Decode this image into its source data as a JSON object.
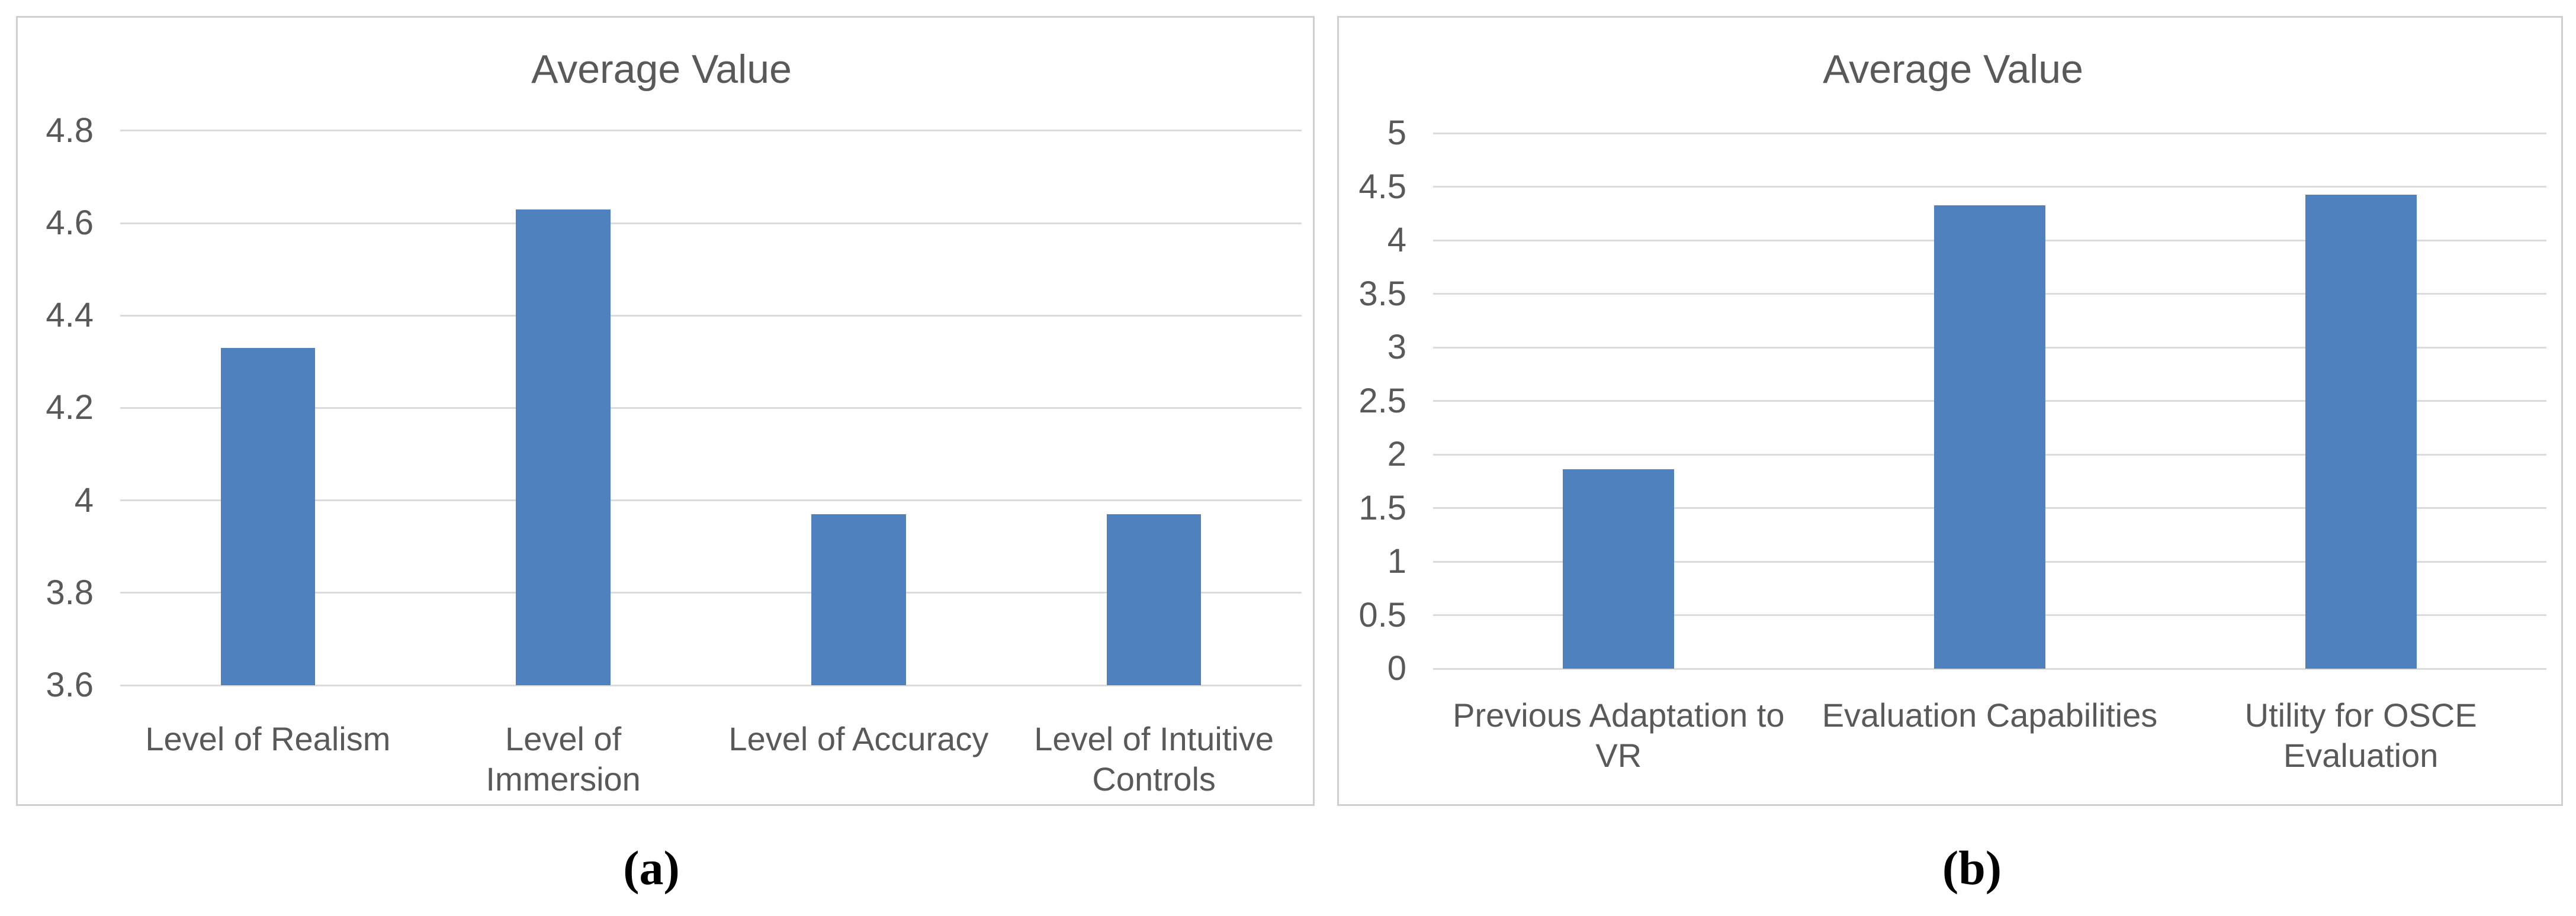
{
  "chart_data": [
    {
      "type": "bar",
      "panel": "a",
      "title": "Average Value",
      "caption": "(a)",
      "categories": [
        "Level of Realism",
        "Level of Immersion",
        "Level of Accuracy",
        "Level of Intuitive Controls"
      ],
      "category_lines": [
        [
          "Level of Realism"
        ],
        [
          "Level of",
          "Immersion"
        ],
        [
          "Level of Accuracy"
        ],
        [
          "Level of Intuitive",
          "Controls"
        ]
      ],
      "values": [
        4.33,
        4.63,
        3.97,
        3.97
      ],
      "ytick_labels": [
        "4.8",
        "4.6",
        "4.4",
        "4.2",
        "4",
        "3.8",
        "3.6"
      ],
      "ytick_values": [
        4.8,
        4.6,
        4.4,
        4.2,
        4.0,
        3.8,
        3.6
      ],
      "ylim": [
        3.6,
        4.8
      ],
      "grid": true,
      "legend": false,
      "bar_color": "#4E81BD",
      "text_color": "#595959"
    },
    {
      "type": "bar",
      "panel": "b",
      "title": "Average Value",
      "caption": "(b)",
      "categories": [
        "Previous Adaptation to VR",
        "Evaluation Capabilities",
        "Utility for OSCE Evaluation"
      ],
      "category_lines": [
        [
          "Previous Adaptation to",
          "VR"
        ],
        [
          "Evaluation Capabilities"
        ],
        [
          "Utility for OSCE",
          "Evaluation"
        ]
      ],
      "values": [
        1.86,
        4.33,
        4.43
      ],
      "ytick_labels": [
        "5",
        "4.5",
        "4",
        "3.5",
        "3",
        "2.5",
        "2",
        "1.5",
        "1",
        "0.5",
        "0"
      ],
      "ytick_values": [
        5,
        4.5,
        4,
        3.5,
        3,
        2.5,
        2,
        1.5,
        1,
        0.5,
        0
      ],
      "ylim": [
        0,
        5
      ],
      "grid": true,
      "legend": false,
      "bar_color": "#4E81BD",
      "text_color": "#595959"
    }
  ]
}
